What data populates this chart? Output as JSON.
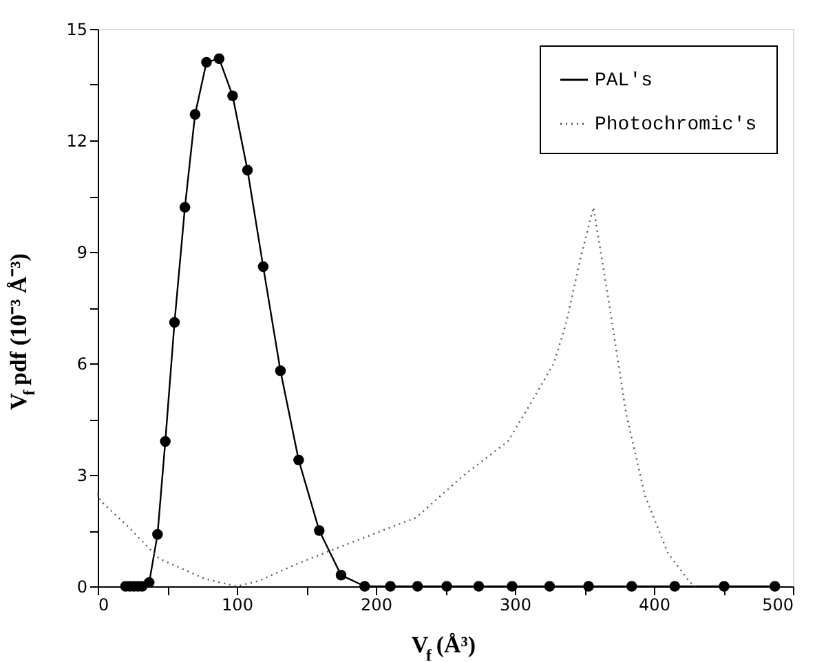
{
  "chart_data": {
    "type": "line",
    "xlabel": "V$_{f}$(Å³)",
    "ylabel": "V$_{f}$ pdf (10⁻³ Å⁻³)",
    "xlim": [
      0,
      500
    ],
    "ylim": [
      0,
      15
    ],
    "xticks": [
      0,
      {
        "value": 50,
        "label": null
      },
      100,
      {
        "value": 150,
        "label": null
      },
      200,
      {
        "value": 250,
        "label": null
      },
      300,
      {
        "value": 350,
        "label": null
      },
      400,
      {
        "value": 450,
        "label": null
      },
      500
    ],
    "yticks": [
      0,
      {
        "value": 1.5,
        "label": null
      },
      3,
      {
        "value": 4.5,
        "label": null
      },
      6,
      {
        "value": 7.5,
        "label": null
      },
      9,
      {
        "value": 10.5,
        "label": null
      },
      12,
      {
        "value": 13.5,
        "label": null
      },
      15
    ],
    "grid": false,
    "legend": "top right",
    "series": [
      {
        "name": "PAL's",
        "color": "#000000",
        "marker": "circle",
        "line_style": "solid",
        "x": [
          20,
          23,
          26,
          29,
          32,
          37,
          43,
          48.6,
          55.2,
          62.7,
          70,
          78.2,
          87.3,
          97,
          107.7,
          119,
          131.4,
          144.5,
          159.3,
          175,
          192,
          210.5,
          230,
          251,
          274,
          298,
          325,
          353,
          384,
          415,
          450.5,
          487
        ],
        "values": [
          0,
          0,
          0,
          0,
          0,
          0.1,
          1.4,
          3.9,
          7.1,
          10.2,
          12.7,
          14.1,
          14.2,
          13.2,
          11.2,
          8.6,
          5.8,
          3.4,
          1.5,
          0.3,
          0,
          0,
          0,
          0,
          0,
          0,
          0,
          0,
          0,
          0,
          0,
          0
        ]
      },
      {
        "name": "Photochromic's",
        "color": "#555555",
        "marker": "none",
        "line_style": "dotted",
        "x": [
          0,
          2,
          22,
          44,
          77,
          100,
          116,
          143,
          177,
          229,
          262,
          295,
          311,
          328,
          337,
          347,
          356.5,
          367,
          380,
          393.5,
          410,
          426,
          430
        ],
        "values": [
          2.5,
          2.3,
          1.6,
          0.75,
          0.2,
          0,
          0.15,
          0.6,
          1.1,
          1.85,
          2.95,
          3.9,
          4.9,
          6,
          7.1,
          8.8,
          10.2,
          7.8,
          4.65,
          2.45,
          0.9,
          0.1,
          0
        ]
      }
    ]
  }
}
